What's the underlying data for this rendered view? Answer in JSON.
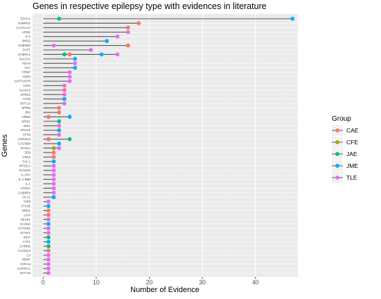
{
  "chart_data": {
    "type": "lollipop",
    "title": "Genes in respective epilepsy type with evidences in literature",
    "xlabel": "Number of Evidence",
    "ylabel": "Genes",
    "xlim": [
      -2,
      48
    ],
    "xticks": [
      0,
      10,
      20,
      30,
      40
    ],
    "grid": true,
    "legend": {
      "title": "Group",
      "placement": "right",
      "entries": [
        {
          "name": "CAE",
          "color": "#F8766D"
        },
        {
          "name": "CFE",
          "color": "#A3A500"
        },
        {
          "name": "JAE",
          "color": "#00BF7D"
        },
        {
          "name": "JME",
          "color": "#00B0F6"
        },
        {
          "name": "TLE",
          "color": "#E76BF3"
        }
      ]
    },
    "genes": [
      {
        "gene": "EFHC1",
        "points": [
          {
            "group": "JAE",
            "value": 3
          },
          {
            "group": "JME",
            "value": 47
          }
        ]
      },
      {
        "gene": "GABRG2",
        "points": [
          {
            "group": "CAE",
            "value": 18
          }
        ]
      },
      {
        "gene": "CACNA1H",
        "points": [
          {
            "group": "CAE",
            "value": 16
          }
        ]
      },
      {
        "gene": "APOE",
        "points": [
          {
            "group": "TLE",
            "value": 16
          }
        ]
      },
      {
        "gene": "IL-6",
        "points": [
          {
            "group": "TLE",
            "value": 14
          }
        ]
      },
      {
        "gene": "BRD2",
        "points": [
          {
            "group": "JME",
            "value": 12
          }
        ]
      },
      {
        "gene": "GABRB3",
        "points": [
          {
            "group": "TLE",
            "value": 2
          },
          {
            "group": "CAE",
            "value": 16
          }
        ]
      },
      {
        "gene": "5HTT",
        "points": [
          {
            "group": "TLE",
            "value": 9
          }
        ]
      },
      {
        "gene": "GABRA1",
        "points": [
          {
            "group": "JAE",
            "value": 4
          },
          {
            "group": "CAE",
            "value": 5
          },
          {
            "group": "JME",
            "value": 11
          },
          {
            "group": "TLE",
            "value": 14
          }
        ]
      },
      {
        "gene": "SLC2A1",
        "points": [
          {
            "group": "JME",
            "value": 6
          }
        ]
      },
      {
        "gene": "PDYN",
        "points": [
          {
            "group": "TLE",
            "value": 6
          }
        ]
      },
      {
        "gene": "HLA",
        "points": [
          {
            "group": "JME",
            "value": 6
          }
        ]
      },
      {
        "gene": "PRNP",
        "points": [
          {
            "group": "TLE",
            "value": 5
          }
        ]
      },
      {
        "gene": "AQP4",
        "points": [
          {
            "group": "TLE",
            "value": 5
          }
        ]
      },
      {
        "gene": "5HTTVNTR",
        "points": [
          {
            "group": "TLE",
            "value": 5
          }
        ]
      },
      {
        "gene": "TLR4",
        "points": [
          {
            "group": "TLE",
            "value": 4
          }
        ]
      },
      {
        "gene": "SLC6A3",
        "points": [
          {
            "group": "CAE",
            "value": 4
          }
        ]
      },
      {
        "gene": "NTRK2",
        "points": [
          {
            "group": "TLE",
            "value": 4
          }
        ]
      },
      {
        "gene": "CX36",
        "points": [
          {
            "group": "JME",
            "value": 4
          }
        ]
      },
      {
        "gene": "5HT-1A",
        "points": [
          {
            "group": "TLE",
            "value": 4
          }
        ]
      },
      {
        "gene": "OPRM",
        "points": [
          {
            "group": "CAE",
            "value": 3
          }
        ]
      },
      {
        "gene": "JRK",
        "points": [
          {
            "group": "CAE",
            "value": 3
          }
        ]
      },
      {
        "gene": "GRM4",
        "points": [
          {
            "group": "CAE",
            "value": 1
          },
          {
            "group": "JME",
            "value": 5
          }
        ]
      },
      {
        "gene": "GRIK1",
        "points": [
          {
            "group": "JAE",
            "value": 3
          }
        ]
      },
      {
        "gene": "GRIL",
        "points": [
          {
            "group": "TLE",
            "value": 3
          }
        ]
      },
      {
        "gene": "EFHC2",
        "points": [
          {
            "group": "JME",
            "value": 3
          }
        ]
      },
      {
        "gene": "CFX6",
        "points": [
          {
            "group": "TLE",
            "value": 3
          }
        ]
      },
      {
        "gene": "CHRNA4",
        "points": [
          {
            "group": "CAE",
            "value": 1
          },
          {
            "group": "JAE",
            "value": 5
          }
        ]
      },
      {
        "gene": "CACNB4",
        "points": [
          {
            "group": "JME",
            "value": 3
          }
        ]
      },
      {
        "gene": "SCN1A",
        "points": [
          {
            "group": "CFE",
            "value": 2
          },
          {
            "group": "TLE",
            "value": 3
          }
        ]
      },
      {
        "gene": "ZEB",
        "points": [
          {
            "group": "CAE",
            "value": 2
          }
        ]
      },
      {
        "gene": "VRK2",
        "points": [
          {
            "group": "CAE",
            "value": 2
          }
        ]
      },
      {
        "gene": "TAF-1",
        "points": [
          {
            "group": "JME",
            "value": 2
          }
        ]
      },
      {
        "gene": "NFE2L2",
        "points": [
          {
            "group": "TLE",
            "value": 2
          }
        ]
      },
      {
        "gene": "KCNJ10",
        "points": [
          {
            "group": "TLE",
            "value": 2
          }
        ]
      },
      {
        "gene": "IL-1RA",
        "points": [
          {
            "group": "TLE",
            "value": 2
          }
        ]
      },
      {
        "gene": "IL-1-B5B",
        "points": [
          {
            "group": "TLE",
            "value": 2
          }
        ]
      },
      {
        "gene": "IL-1",
        "points": [
          {
            "group": "TLE",
            "value": 2
          }
        ]
      },
      {
        "gene": "HTR2A",
        "points": [
          {
            "group": "TLE",
            "value": 2
          }
        ]
      },
      {
        "gene": "GABBR2",
        "points": [
          {
            "group": "TLE",
            "value": 2
          }
        ]
      },
      {
        "gene": "CILA1",
        "points": [
          {
            "group": "JME",
            "value": 2
          }
        ]
      },
      {
        "gene": "TJP5",
        "points": [
          {
            "group": "TLE",
            "value": 1
          }
        ]
      },
      {
        "gene": "STX1B",
        "points": [
          {
            "group": "JME",
            "value": 1
          }
        ]
      },
      {
        "gene": "NRG1",
        "points": [
          {
            "group": "CAE",
            "value": 1
          }
        ]
      },
      {
        "gene": "LGI4",
        "points": [
          {
            "group": "CAE",
            "value": 1
          }
        ]
      },
      {
        "gene": "KEAP1",
        "points": [
          {
            "group": "TLE",
            "value": 1
          }
        ]
      },
      {
        "gene": "KCNN3",
        "points": [
          {
            "group": "JME",
            "value": 1
          }
        ]
      },
      {
        "gene": "KCNAB2",
        "points": [
          {
            "group": "TLE",
            "value": 1
          }
        ]
      },
      {
        "gene": "KCNA1",
        "points": [
          {
            "group": "TLE",
            "value": 1
          }
        ]
      },
      {
        "gene": "INHA",
        "points": [
          {
            "group": "JAE",
            "value": 1
          }
        ]
      },
      {
        "gene": "CTF1",
        "points": [
          {
            "group": "JME",
            "value": 1
          }
        ]
      },
      {
        "gene": "CHRM3",
        "points": [
          {
            "group": "JAE",
            "value": 1
          }
        ]
      },
      {
        "gene": "CACNG3",
        "points": [
          {
            "group": "CAE",
            "value": 1
          }
        ]
      },
      {
        "gene": "C3",
        "points": [
          {
            "group": "TLE",
            "value": 1
          }
        ]
      },
      {
        "gene": "BDNF",
        "points": [
          {
            "group": "TLE",
            "value": 1
          }
        ]
      },
      {
        "gene": "ASIC1a",
        "points": [
          {
            "group": "TLE",
            "value": 1
          }
        ]
      },
      {
        "gene": "ALDH5A1",
        "points": [
          {
            "group": "TLE",
            "value": 1
          }
        ]
      },
      {
        "gene": "5HT-1B",
        "points": [
          {
            "group": "TLE",
            "value": 1
          }
        ]
      }
    ]
  }
}
